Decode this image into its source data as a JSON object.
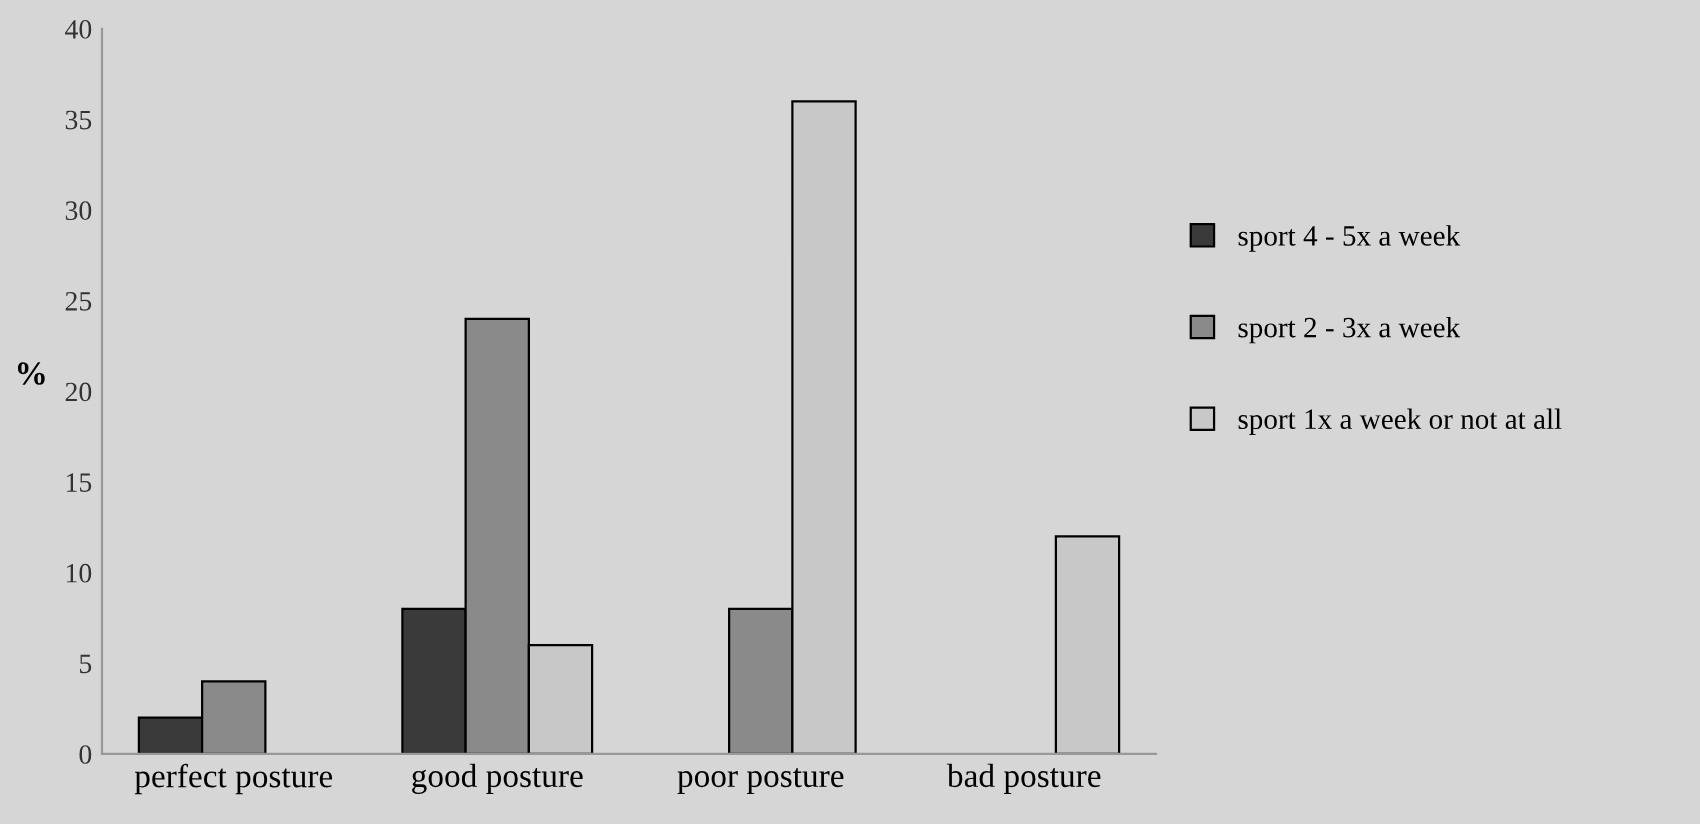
{
  "chart_data": {
    "type": "bar",
    "ylabel": "%",
    "categories": [
      "perfect posture",
      "good posture",
      "poor posture",
      "bad posture"
    ],
    "series": [
      {
        "name": "sport 4 - 5x a week",
        "color": "#3a3a3a",
        "values": [
          2,
          8,
          null,
          null
        ]
      },
      {
        "name": "sport 2 - 3x a week",
        "color": "#8a8a8a",
        "values": [
          4,
          24,
          8,
          null
        ]
      },
      {
        "name": "sport 1x a week or not at all",
        "color": "#c8c8c8",
        "values": [
          null,
          6,
          36,
          12
        ]
      }
    ],
    "ylim": [
      0,
      40
    ],
    "yticks": [
      0,
      5,
      10,
      15,
      20,
      25,
      30,
      35,
      40
    ],
    "grid": false,
    "legend": "right"
  }
}
